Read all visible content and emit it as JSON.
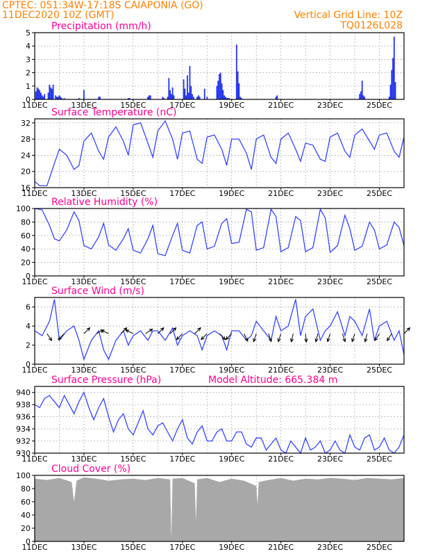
{
  "header": {
    "line1_left": "CPTEC:  051:34W-17:18S  CAIAPONIA (GO)",
    "line2_left": "11DEC2020 10Z (GMT)",
    "line1_right": "Vertical Grid Line: 10Z",
    "line2_right": "TQ0126L028"
  },
  "colors": {
    "header": "#ff8000",
    "panel_title": "#ff0090",
    "series": "#3344ff",
    "bars": "#2233ee",
    "cloud": "#a8a8a8"
  },
  "chart_data": [
    {
      "type": "bar",
      "title": "Precipitation (mm/h)",
      "ylim": [
        0,
        5
      ],
      "yticks": [
        "0",
        "1",
        "2",
        "3",
        "4",
        "5"
      ],
      "xtick_labels": [
        "11DEC",
        "13DEC",
        "15DEC",
        "17DEC",
        "19DEC",
        "21DEC",
        "23DEC",
        "25DEC"
      ],
      "x_unit": "day offset from 11DEC 10Z",
      "x": [
        0.05,
        0.1,
        0.15,
        0.2,
        0.25,
        0.3,
        0.35,
        0.4,
        0.55,
        0.6,
        0.65,
        0.7,
        0.75,
        0.85,
        0.9,
        0.95,
        1.0,
        1.05,
        1.1,
        1.2,
        1.8,
        2.0,
        2.6,
        2.65,
        3.8,
        3.85,
        4.6,
        4.65,
        4.7,
        5.2,
        5.25,
        5.4,
        5.45,
        5.5,
        5.55,
        5.6,
        5.65,
        6.05,
        6.1,
        6.15,
        6.2,
        6.25,
        6.3,
        6.35,
        6.4,
        6.45,
        6.6,
        6.65,
        6.7,
        6.9,
        7.0,
        7.4,
        7.45,
        7.5,
        7.55,
        7.6,
        7.65,
        7.7,
        7.75,
        7.8,
        7.85,
        7.9,
        8.2,
        8.25,
        8.3,
        8.35,
        8.4,
        9.8,
        9.85,
        13.2,
        13.25,
        13.3,
        13.35,
        13.4,
        14.4,
        14.45,
        14.5,
        14.55,
        14.6,
        14.65
      ],
      "values": [
        0.6,
        0.9,
        0.8,
        0.7,
        0.5,
        0.3,
        0.2,
        0.4,
        0.5,
        1.1,
        0.9,
        0.8,
        1.1,
        0.3,
        0.2,
        0.2,
        0.3,
        0.2,
        0.1,
        0.1,
        0.1,
        0.7,
        0.2,
        0.2,
        0.1,
        0.1,
        0.2,
        0.3,
        0.3,
        0.2,
        0.1,
        0.2,
        1.6,
        0.7,
        0.4,
        0.9,
        0.3,
        1.5,
        0.8,
        0.3,
        1.8,
        0.5,
        2.5,
        1.0,
        0.4,
        0.2,
        0.2,
        0.3,
        0.2,
        0.8,
        0.2,
        1.0,
        1.4,
        1.9,
        2.0,
        1.2,
        0.7,
        0.3,
        0.2,
        0.1,
        0.1,
        0.1,
        4.1,
        2.1,
        1.2,
        0.2,
        0.1,
        0.2,
        0.3,
        0.4,
        0.6,
        1.4,
        0.3,
        0.2,
        0.2,
        1.1,
        2.2,
        3.1,
        4.7,
        1.3
      ]
    },
    {
      "type": "line",
      "title": "Surface Temperature (nC)",
      "ylim": [
        16,
        33
      ],
      "yticks": [
        "16",
        "20",
        "24",
        "28",
        "32"
      ],
      "xtick_labels": [
        "11DEC",
        "13DEC",
        "15DEC",
        "17DEC",
        "19DEC",
        "21DEC",
        "23DEC",
        "25DEC"
      ],
      "x_unit": "day offset from 11DEC 10Z",
      "x": [
        0,
        0.2,
        0.5,
        0.8,
        1.0,
        1.3,
        1.6,
        1.8,
        2.0,
        2.3,
        2.6,
        2.8,
        3.0,
        3.3,
        3.6,
        3.8,
        4.0,
        4.3,
        4.6,
        4.8,
        5.0,
        5.3,
        5.6,
        5.8,
        6.0,
        6.3,
        6.6,
        6.8,
        7.0,
        7.3,
        7.6,
        7.8,
        8.0,
        8.3,
        8.6,
        8.8,
        9.0,
        9.3,
        9.6,
        9.8,
        10.0,
        10.3,
        10.6,
        10.8,
        11.0,
        11.3,
        11.6,
        11.8,
        12.0,
        12.3,
        12.6,
        12.8,
        13.0,
        13.3,
        13.6,
        13.8,
        14.0,
        14.3,
        14.6,
        14.8,
        15.0
      ],
      "values": [
        17.5,
        16.5,
        16.5,
        22.0,
        25.5,
        24.0,
        20.5,
        21.5,
        27.5,
        29.5,
        25.0,
        23.0,
        28.5,
        31.0,
        27.5,
        24.0,
        31.5,
        32.0,
        27.0,
        23.5,
        30.0,
        32.5,
        28.0,
        23.0,
        29.5,
        30.0,
        23.0,
        22.0,
        28.5,
        29.0,
        25.5,
        21.5,
        28.0,
        28.0,
        24.5,
        20.5,
        28.0,
        29.0,
        23.5,
        22.0,
        28.0,
        29.5,
        25.5,
        22.5,
        27.0,
        26.5,
        23.0,
        22.5,
        28.5,
        29.5,
        25.0,
        23.5,
        29.0,
        30.5,
        27.5,
        25.5,
        29.0,
        29.5,
        25.0,
        23.5,
        28.5
      ]
    },
    {
      "type": "line",
      "title": "Relative Humidity (%)",
      "ylim": [
        0,
        100
      ],
      "yticks": [
        "0",
        "20",
        "40",
        "60",
        "80",
        "100"
      ],
      "xtick_labels": [
        "11DEC",
        "13DEC",
        "15DEC",
        "17DEC",
        "19DEC",
        "21DEC",
        "23DEC",
        "25DEC"
      ],
      "x_unit": "day offset from 11DEC 10Z",
      "x": [
        0,
        0.3,
        0.6,
        0.8,
        1.0,
        1.3,
        1.6,
        1.8,
        2.0,
        2.3,
        2.6,
        2.8,
        3.0,
        3.3,
        3.6,
        3.8,
        4.0,
        4.3,
        4.6,
        4.8,
        5.0,
        5.3,
        5.6,
        5.8,
        6.0,
        6.3,
        6.6,
        6.8,
        7.0,
        7.3,
        7.6,
        7.8,
        8.0,
        8.3,
        8.6,
        8.8,
        9.0,
        9.3,
        9.6,
        9.8,
        10.0,
        10.3,
        10.6,
        10.8,
        11.0,
        11.3,
        11.6,
        11.8,
        12.0,
        12.3,
        12.6,
        12.8,
        13.0,
        13.3,
        13.6,
        13.8,
        14.0,
        14.3,
        14.6,
        14.8,
        15.0
      ],
      "values": [
        100,
        98,
        75,
        55,
        52,
        68,
        95,
        82,
        45,
        40,
        58,
        78,
        46,
        38,
        55,
        70,
        38,
        34,
        55,
        75,
        33,
        30,
        60,
        78,
        38,
        34,
        75,
        80,
        40,
        44,
        78,
        85,
        48,
        50,
        99,
        95,
        38,
        42,
        99,
        88,
        36,
        42,
        88,
        82,
        36,
        42,
        99,
        86,
        35,
        45,
        90,
        70,
        38,
        44,
        80,
        68,
        40,
        46,
        80,
        72,
        45
      ]
    },
    {
      "type": "line",
      "title": "Surface Wind (m/s)",
      "ylim": [
        0,
        7
      ],
      "yticks": [
        "0",
        "2",
        "4",
        "6"
      ],
      "xtick_labels": [
        "11DEC",
        "13DEC",
        "15DEC",
        "17DEC",
        "19DEC",
        "21DEC",
        "23DEC",
        "25DEC"
      ],
      "x_unit": "day offset from 11DEC 10Z",
      "x": [
        0,
        0.3,
        0.6,
        0.8,
        1.0,
        1.3,
        1.6,
        1.8,
        2.0,
        2.3,
        2.6,
        2.8,
        3.0,
        3.3,
        3.6,
        3.8,
        4.0,
        4.3,
        4.6,
        4.8,
        5.0,
        5.3,
        5.6,
        5.8,
        6.0,
        6.3,
        6.6,
        6.8,
        7.0,
        7.3,
        7.6,
        7.8,
        8.0,
        8.3,
        8.6,
        8.8,
        9.0,
        9.3,
        9.6,
        9.8,
        10.0,
        10.3,
        10.6,
        10.8,
        11.0,
        11.3,
        11.6,
        11.8,
        12.0,
        12.3,
        12.6,
        12.8,
        13.0,
        13.3,
        13.6,
        13.8,
        14.0,
        14.3,
        14.6,
        14.8,
        15.0
      ],
      "values": [
        3.5,
        3.0,
        4.5,
        6.8,
        2.5,
        3.5,
        4.0,
        2.5,
        0.5,
        2.5,
        3.5,
        1.5,
        0.5,
        2.5,
        3.5,
        2.0,
        3.0,
        3.5,
        2.5,
        3.5,
        3.5,
        2.5,
        3.8,
        2.0,
        3.0,
        3.5,
        3.0,
        1.5,
        3.0,
        3.5,
        3.0,
        1.5,
        3.5,
        3.5,
        2.5,
        3.0,
        4.5,
        3.5,
        2.5,
        5.0,
        3.5,
        4.0,
        6.8,
        3.0,
        5.0,
        5.8,
        2.5,
        3.5,
        4.0,
        5.5,
        3.0,
        5.0,
        4.5,
        3.0,
        5.8,
        2.5,
        4.0,
        4.5,
        2.5,
        3.5,
        1.0
      ],
      "arrows": {
        "x": [
          0.5,
          1.2,
          2.0,
          2.5,
          3.0,
          3.5,
          4.0,
          4.5,
          5.0,
          5.5,
          6.0,
          6.5,
          7.0,
          7.5,
          8.0,
          8.5,
          9.0,
          9.5,
          10.0,
          10.5,
          11.0,
          11.5,
          12.0,
          12.5,
          13.0,
          13.5,
          14.0,
          14.5,
          15.0
        ],
        "u": [
          2,
          -3,
          2,
          2,
          -2,
          2,
          -2,
          3,
          2,
          3,
          -3,
          2,
          -3,
          2,
          -2,
          1,
          -1,
          1,
          -1,
          -1,
          0.5,
          -1,
          -1,
          1,
          -1,
          -1,
          -2,
          -2,
          2
        ],
        "v": [
          -3,
          -3,
          2,
          1,
          1,
          2,
          1,
          2,
          2,
          3,
          -3,
          2,
          -3,
          -2,
          -2,
          -2,
          -3,
          -3,
          -3,
          -4,
          -5,
          -4,
          -3,
          -3,
          -3,
          -4,
          -3,
          -3,
          2
        ]
      }
    },
    {
      "type": "line",
      "title": "Surface Pressure (hPa)",
      "annotation": "Model Altitude: 665.384 m",
      "ylim": [
        930,
        941
      ],
      "yticks": [
        "930",
        "932",
        "934",
        "936",
        "938",
        "940"
      ],
      "xtick_labels": [
        "11DEC",
        "13DEC",
        "15DEC",
        "17DEC",
        "19DEC",
        "21DEC",
        "23DEC",
        "25DEC"
      ],
      "x_unit": "day offset from 11DEC 10Z",
      "x": [
        0,
        0.2,
        0.4,
        0.6,
        0.8,
        1.0,
        1.2,
        1.4,
        1.6,
        1.8,
        2.0,
        2.2,
        2.4,
        2.6,
        2.8,
        3.0,
        3.2,
        3.4,
        3.6,
        3.8,
        4.0,
        4.2,
        4.4,
        4.6,
        4.8,
        5.0,
        5.2,
        5.4,
        5.6,
        5.8,
        6.0,
        6.2,
        6.4,
        6.6,
        6.8,
        7.0,
        7.2,
        7.4,
        7.6,
        7.8,
        8.0,
        8.2,
        8.4,
        8.6,
        8.8,
        9.0,
        9.2,
        9.4,
        9.6,
        9.8,
        10.0,
        10.2,
        10.4,
        10.6,
        10.8,
        11.0,
        11.2,
        11.4,
        11.6,
        11.8,
        12.0,
        12.2,
        12.4,
        12.6,
        12.8,
        13.0,
        13.2,
        13.4,
        13.6,
        13.8,
        14.0,
        14.2,
        14.4,
        14.6,
        14.8,
        15.0
      ],
      "values": [
        938.0,
        937.5,
        939.0,
        939.5,
        938.5,
        937.5,
        939.5,
        938.0,
        936.5,
        938.5,
        940.0,
        937.5,
        935.5,
        937.5,
        939.0,
        936.0,
        933.5,
        935.5,
        936.5,
        934.0,
        933.0,
        935.0,
        937.0,
        934.0,
        933.0,
        934.5,
        935.0,
        933.5,
        932.0,
        934.0,
        935.5,
        932.5,
        931.5,
        933.5,
        934.5,
        932.0,
        932.0,
        933.5,
        934.0,
        932.0,
        932.0,
        933.5,
        933.5,
        931.5,
        931.0,
        932.5,
        932.5,
        930.5,
        931.5,
        932.5,
        930.5,
        930.0,
        932.0,
        931.0,
        930.0,
        932.5,
        930.5,
        931.0,
        932.0,
        930.0,
        930.5,
        932.0,
        930.5,
        930.0,
        933.0,
        931.0,
        930.5,
        932.5,
        933.0,
        930.5,
        931.0,
        932.5,
        930.5,
        930.0,
        931.0,
        933.0
      ]
    },
    {
      "type": "area",
      "title": "Cloud Cover (%)",
      "ylim": [
        0,
        100
      ],
      "yticks": [
        "0",
        "20",
        "40",
        "60",
        "80",
        "100"
      ],
      "xtick_labels": [
        "11DEC",
        "13DEC",
        "15DEC",
        "17DEC",
        "19DEC",
        "21DEC",
        "23DEC",
        "25DEC"
      ],
      "x_unit": "day offset from 11DEC 10Z",
      "x": [
        0,
        0.5,
        1.0,
        1.5,
        1.6,
        1.7,
        2.0,
        2.5,
        3.0,
        3.5,
        4.0,
        4.5,
        5.0,
        5.5,
        5.55,
        5.6,
        6.0,
        6.5,
        6.55,
        6.6,
        7.0,
        7.5,
        8.0,
        8.5,
        9.0,
        9.05,
        9.1,
        9.5,
        10.0,
        10.5,
        11.0,
        11.5,
        12.0,
        12.5,
        13.0,
        13.5,
        14.0,
        14.5,
        15.0
      ],
      "values": [
        95,
        93,
        96,
        90,
        60,
        92,
        97,
        95,
        92,
        94,
        95,
        93,
        96,
        94,
        3,
        95,
        96,
        88,
        30,
        94,
        96,
        90,
        95,
        92,
        84,
        55,
        90,
        93,
        96,
        92,
        95,
        94,
        96,
        95,
        93,
        96,
        95,
        94,
        96
      ]
    }
  ]
}
